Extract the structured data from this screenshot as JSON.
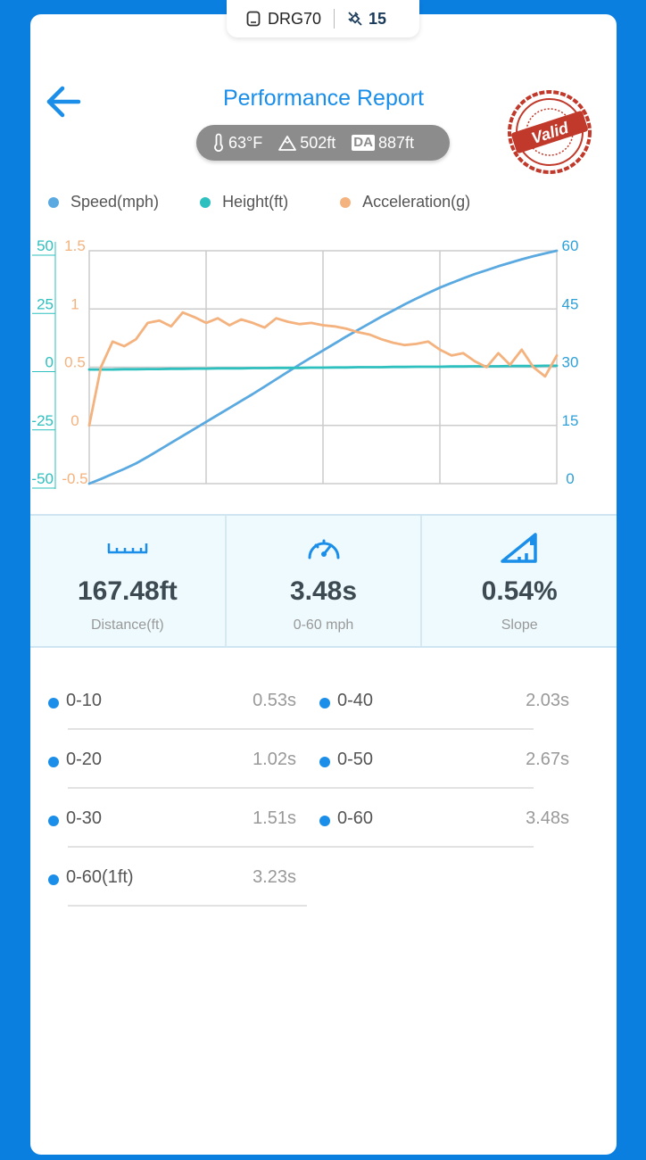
{
  "device": {
    "name": "DRG70",
    "satellites": "15"
  },
  "header": {
    "title": "Performance Report",
    "stamp_text": "Valid"
  },
  "environment": {
    "temperature": "63°F",
    "altitude": "502ft",
    "da_label": "DA",
    "density_altitude": "887ft"
  },
  "legend": [
    {
      "label": "Speed(mph)",
      "color": "#5aa9e0"
    },
    {
      "label": "Height(ft)",
      "color": "#2ebfbf"
    },
    {
      "label": "Acceleration(g)",
      "color": "#f4b27e"
    }
  ],
  "chart_data": {
    "type": "line",
    "x": [
      0,
      0.5,
      1,
      1.5,
      2,
      2.5,
      3,
      3.5,
      4,
      4.5,
      5,
      5.5,
      6,
      6.5,
      7,
      7.5,
      8,
      8.5,
      9,
      9.5,
      10,
      10.5,
      11,
      11.5,
      12,
      12.5,
      13,
      13.5,
      14,
      14.5,
      15,
      15.5,
      16,
      16.5,
      17,
      17.5,
      18,
      18.5,
      19,
      19.5,
      20
    ],
    "x_range": [
      0,
      20
    ],
    "y_axes": {
      "height": {
        "ticks": [
          "50",
          "25",
          "0",
          "-25",
          "-50"
        ],
        "range": [
          -50,
          50
        ],
        "color": "#2ebfbf"
      },
      "acceleration": {
        "ticks": [
          "1.5",
          "1",
          "0.5",
          "0",
          "-0.5"
        ],
        "range": [
          -0.5,
          1.5
        ],
        "color": "#f4b27e"
      },
      "speed": {
        "ticks": [
          "60",
          "45",
          "30",
          "15",
          "0"
        ],
        "range": [
          0,
          60
        ],
        "color": "#2ea0d8"
      }
    },
    "series": [
      {
        "name": "Speed(mph)",
        "axis": "speed",
        "color": "#5aa9e0",
        "values": [
          0,
          1.2,
          2.5,
          3.8,
          5.2,
          6.9,
          8.7,
          10.5,
          12.3,
          14.1,
          15.9,
          17.7,
          19.5,
          21.3,
          23.1,
          25.0,
          26.9,
          28.8,
          30.7,
          32.5,
          34.3,
          36.1,
          37.9,
          39.6,
          41.3,
          43.0,
          44.6,
          46.2,
          47.7,
          49.1,
          50.5,
          51.7,
          52.9,
          54.0,
          55.0,
          56.0,
          56.9,
          57.8,
          58.6,
          59.3,
          60.0
        ]
      },
      {
        "name": "Height(ft)",
        "axis": "height",
        "color": "#2ebfbf",
        "values": [
          -1,
          -1,
          -1,
          -0.9,
          -0.9,
          -0.8,
          -0.8,
          -0.7,
          -0.7,
          -0.6,
          -0.6,
          -0.5,
          -0.5,
          -0.5,
          -0.4,
          -0.4,
          -0.3,
          -0.3,
          -0.3,
          -0.2,
          -0.2,
          -0.1,
          -0.1,
          0,
          0,
          0,
          0.1,
          0.1,
          0.2,
          0.2,
          0.2,
          0.3,
          0.3,
          0.4,
          0.4,
          0.4,
          0.5,
          0.5,
          0.5,
          0.6,
          0.6
        ]
      },
      {
        "name": "Acceleration(g)",
        "axis": "acceleration",
        "color": "#f4b27e",
        "values": [
          0,
          0.5,
          0.72,
          0.68,
          0.74,
          0.88,
          0.9,
          0.85,
          0.97,
          0.93,
          0.88,
          0.92,
          0.86,
          0.91,
          0.88,
          0.84,
          0.92,
          0.89,
          0.87,
          0.88,
          0.86,
          0.85,
          0.83,
          0.8,
          0.78,
          0.74,
          0.71,
          0.69,
          0.7,
          0.72,
          0.65,
          0.6,
          0.62,
          0.55,
          0.5,
          0.62,
          0.52,
          0.65,
          0.5,
          0.42,
          0.6
        ]
      }
    ]
  },
  "stats": [
    {
      "value": "167.48ft",
      "label": "Distance(ft)",
      "icon": "ruler-icon"
    },
    {
      "value": "3.48s",
      "label": "0-60 mph",
      "icon": "speedometer-icon"
    },
    {
      "value": "0.54%",
      "label": "Slope",
      "icon": "slope-icon"
    }
  ],
  "splits": [
    {
      "name": "0-10",
      "time": "0.53s"
    },
    {
      "name": "0-40",
      "time": "2.03s"
    },
    {
      "name": "0-20",
      "time": "1.02s"
    },
    {
      "name": "0-50",
      "time": "2.67s"
    },
    {
      "name": "0-30",
      "time": "1.51s"
    },
    {
      "name": "0-60",
      "time": "3.48s"
    },
    {
      "name": "0-60(1ft)",
      "time": "3.23s"
    }
  ]
}
